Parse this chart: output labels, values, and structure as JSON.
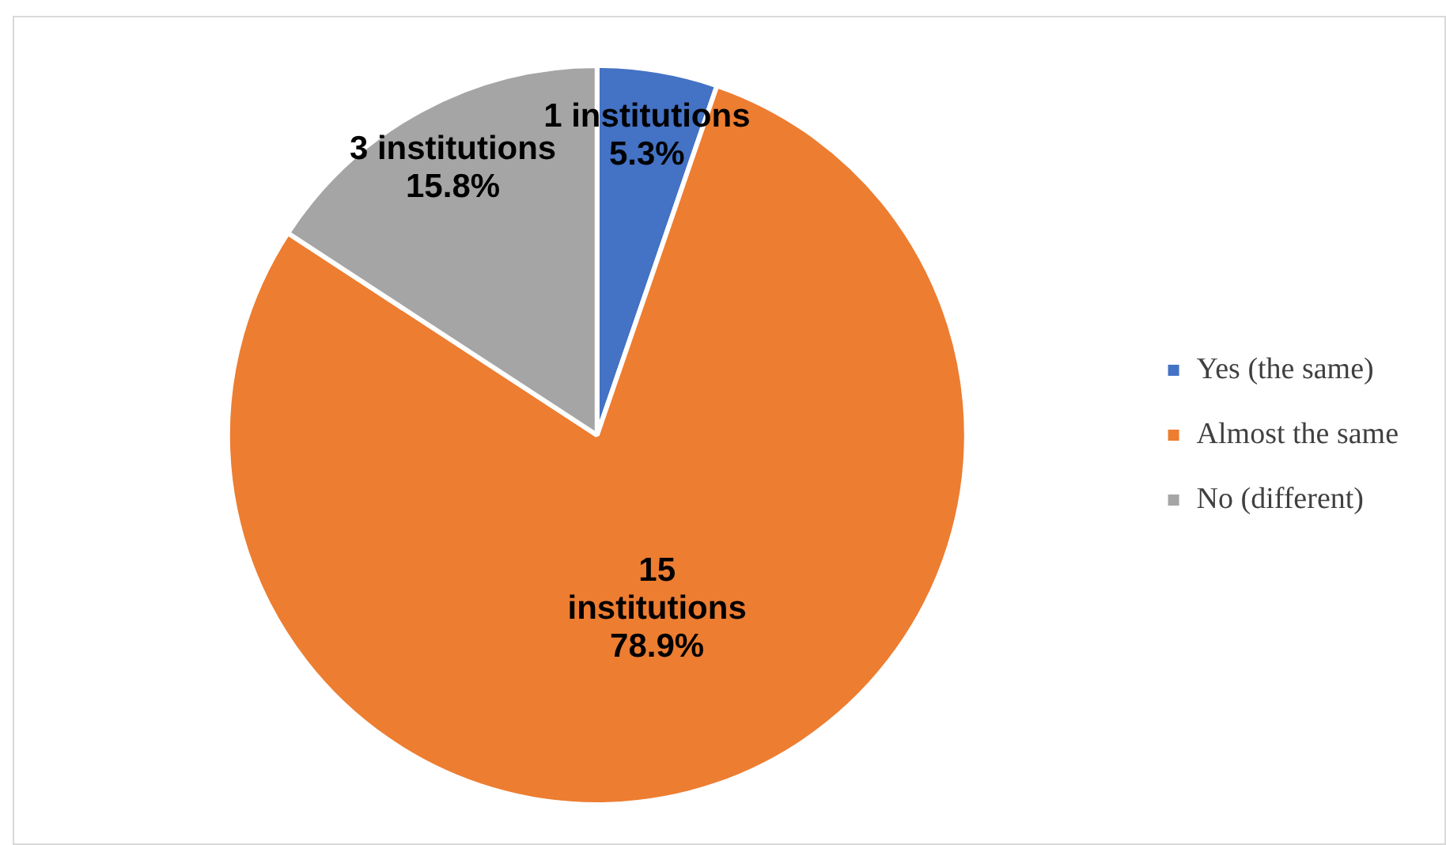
{
  "chart_data": {
    "type": "pie",
    "categories": [
      "Yes (the same)",
      "Almost the same",
      "No (different)"
    ],
    "values": [
      1,
      15,
      3
    ],
    "colors": [
      "#4472c4",
      "#ed7d31",
      "#a5a5a5"
    ],
    "value_labels": [
      "1 institutions\n5.3%",
      "15\ninstitutions\n78.9%",
      "3 institutions\n15.8%"
    ],
    "legend": "right"
  }
}
